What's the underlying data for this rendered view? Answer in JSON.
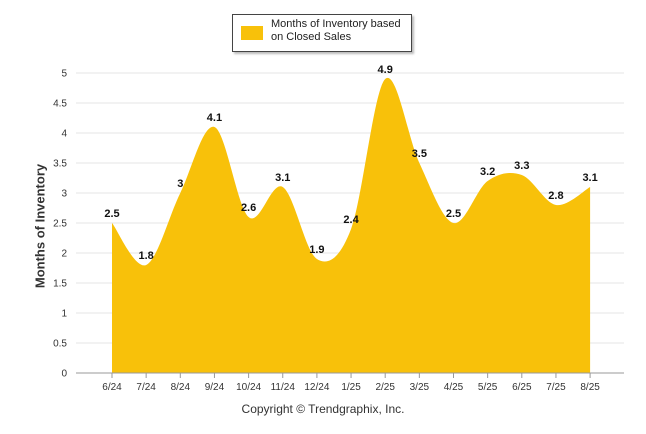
{
  "chart_data": {
    "type": "area",
    "categories": [
      "6/24",
      "7/24",
      "8/24",
      "9/24",
      "10/24",
      "11/24",
      "12/24",
      "1/25",
      "2/25",
      "3/25",
      "4/25",
      "5/25",
      "6/25",
      "7/25",
      "8/25"
    ],
    "series": [
      {
        "name": "Months of Inventory based on Closed Sales",
        "values": [
          2.5,
          1.8,
          3,
          4.1,
          2.6,
          3.1,
          1.9,
          2.4,
          4.9,
          3.5,
          2.5,
          3.2,
          3.3,
          2.8,
          3.1
        ]
      }
    ],
    "ylabel": "Months of Inventory",
    "xlabel": "",
    "ylim": [
      0,
      5
    ],
    "yticks": [
      "0",
      "0.5",
      "1",
      "1.5",
      "2",
      "2.5",
      "3",
      "3.5",
      "4",
      "4.5",
      "5"
    ],
    "grid": true,
    "legend_position": "top-center",
    "data_labels": [
      "2.5",
      "1.8",
      "3",
      "4.1",
      "2.6",
      "3.1",
      "1.9",
      "2.4",
      "4.9",
      "3.5",
      "2.5",
      "3.2",
      "3.3",
      "2.8",
      "3.1"
    ]
  },
  "colors": {
    "area": "#F8C10A",
    "grid": "#e6e6e6",
    "axis": "#999999"
  },
  "footer": {
    "copyright": "Copyright © Trendgraphix, Inc."
  }
}
